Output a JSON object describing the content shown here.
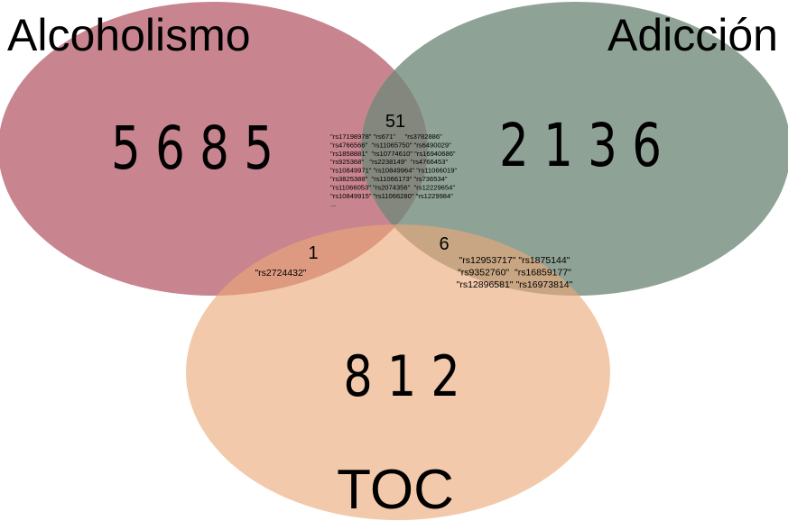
{
  "sets": {
    "alcoholismo": {
      "label": "Alcoholismo",
      "color": "#b8636f",
      "count": "5 6 8 5"
    },
    "adiccion": {
      "label": "Adicción",
      "color": "#6f8878",
      "count": "2 1 3 6"
    },
    "toc": {
      "label": "TOC",
      "color": "#eba877",
      "count": "8 1 2"
    }
  },
  "intersections": {
    "alcoholismo_adiccion": {
      "count": "51",
      "snps": [
        "\"rs17198978\" \"rs671\"     \"rs3782886\"",
        "\"rs4766566\"  \"rs11065750\" \"rs6490029\"",
        "\"rs1858881\"  \"rs10774610\" \"rs16940686\"",
        "\"rs925368\"   \"rs2238149\"  \"rs4766453\"",
        "\"rs10849971\" \"rs10849964\" \"rs11066019\"",
        "\"rs3825388\"  \"rs11066173\" \"rs736534\"",
        "\"rs11066053\" \"rs2074356\"  \"rs12229654\"",
        "\"rs10849915\" \"rs11066280\" \"rs1229984\"",
        "..."
      ]
    },
    "alcoholismo_toc": {
      "count": "1",
      "snps": [
        "\"rs2724432\""
      ]
    },
    "adiccion_toc": {
      "count": "6",
      "snps": [
        "\"rs12953717\" \"rs1875144\"",
        "\"rs9352760\"  \"rs16859177\"",
        "\"rs12896581\" \"rs16973814\""
      ]
    }
  }
}
